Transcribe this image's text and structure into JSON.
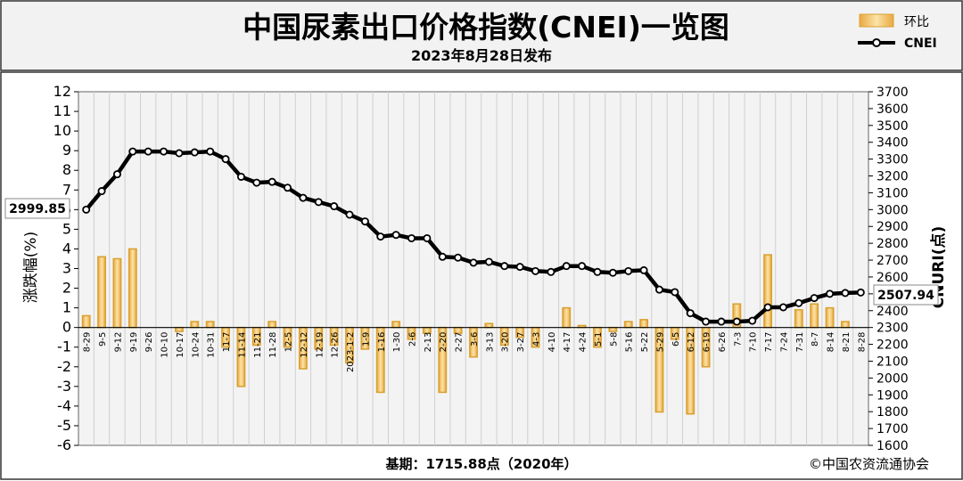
{
  "chart_data": {
    "type": "bar+line",
    "title": "中国尿素出口价格指数(CNEI)一览图",
    "subtitle": "2023年8月28日发布",
    "ylabel_left": "涨跌幅(%)",
    "ylabel_right": "CNURI(点)",
    "ylim_left": [
      -6,
      12
    ],
    "ylim_right": [
      1600,
      3700
    ],
    "yticks_left": [
      -6,
      -5,
      -4,
      -3,
      -2,
      -1,
      0,
      1,
      2,
      3,
      4,
      5,
      6,
      7,
      8,
      9,
      10,
      11,
      12
    ],
    "yticks_right": [
      1600,
      1700,
      1800,
      1900,
      2000,
      2100,
      2200,
      2300,
      2400,
      2500,
      2600,
      2700,
      2800,
      2900,
      3000,
      3100,
      3200,
      3300,
      3400,
      3500,
      3600,
      3700
    ],
    "categories": [
      "8-29",
      "9-5",
      "9-12",
      "9-19",
      "9-26",
      "10-10",
      "10-17",
      "10-24",
      "10-31",
      "11-7",
      "11-14",
      "11-21",
      "11-28",
      "12-5",
      "12-12",
      "12-19",
      "12-26",
      "2023-1-2",
      "1-9",
      "1-16",
      "1-30",
      "2-6",
      "2-13",
      "2-20",
      "2-27",
      "3-6",
      "3-13",
      "3-20",
      "3-27",
      "4-3",
      "4-10",
      "4-17",
      "4-24",
      "5-1",
      "5-8",
      "5-16",
      "5-22",
      "5-29",
      "6-5",
      "6-12",
      "6-19",
      "6-26",
      "7-3",
      "7-10",
      "7-17",
      "7-24",
      "7-31",
      "8-7",
      "8-14",
      "8-21",
      "8-28"
    ],
    "series": [
      {
        "name": "环比",
        "type": "bar",
        "values": [
          0.6,
          3.6,
          3.5,
          4.0,
          0.0,
          0.0,
          -0.2,
          0.3,
          0.3,
          -1.0,
          -3.0,
          -0.9,
          0.3,
          -1.0,
          -2.1,
          -1.1,
          -0.9,
          -1.8,
          -1.1,
          -3.3,
          0.3,
          -0.6,
          -0.3,
          -3.3,
          -0.3,
          -1.5,
          0.2,
          -0.9,
          -0.5,
          -1.0,
          0.0,
          1.0,
          0.1,
          -1.0,
          -0.2,
          0.3,
          0.4,
          -4.3,
          -0.6,
          -4.4,
          -2.0,
          0.0,
          1.2,
          0.0,
          3.7,
          0.0,
          0.9,
          1.2,
          1.0,
          0.3,
          0.0
        ]
      },
      {
        "name": "CNEI",
        "type": "line",
        "values": [
          2999.85,
          3110,
          3210,
          3345,
          3345,
          3345,
          3335,
          3340,
          3345,
          3300,
          3195,
          3160,
          3165,
          3130,
          3070,
          3045,
          3020,
          2970,
          2930,
          2840,
          2850,
          2830,
          2830,
          2720,
          2715,
          2685,
          2690,
          2665,
          2660,
          2635,
          2630,
          2665,
          2665,
          2630,
          2625,
          2635,
          2640,
          2525,
          2510,
          2385,
          2335,
          2335,
          2335,
          2340,
          2420,
          2420,
          2445,
          2475,
          2500,
          2505,
          2507.94
        ]
      }
    ],
    "value_labels": {
      "first": "2999.85",
      "last": "2507.94"
    },
    "legend": {
      "placement": "top-right",
      "items": [
        "环比",
        "CNEI"
      ]
    },
    "grid": "vertical",
    "colors": {
      "bar_fill": "#F2C770",
      "bar_edge": "#D9A030",
      "line": "#000000",
      "marker_fill": "#ffffff"
    }
  },
  "footer": {
    "base": "基期：1715.88点（2020年）",
    "copyright": "©中国农资流通协会"
  }
}
